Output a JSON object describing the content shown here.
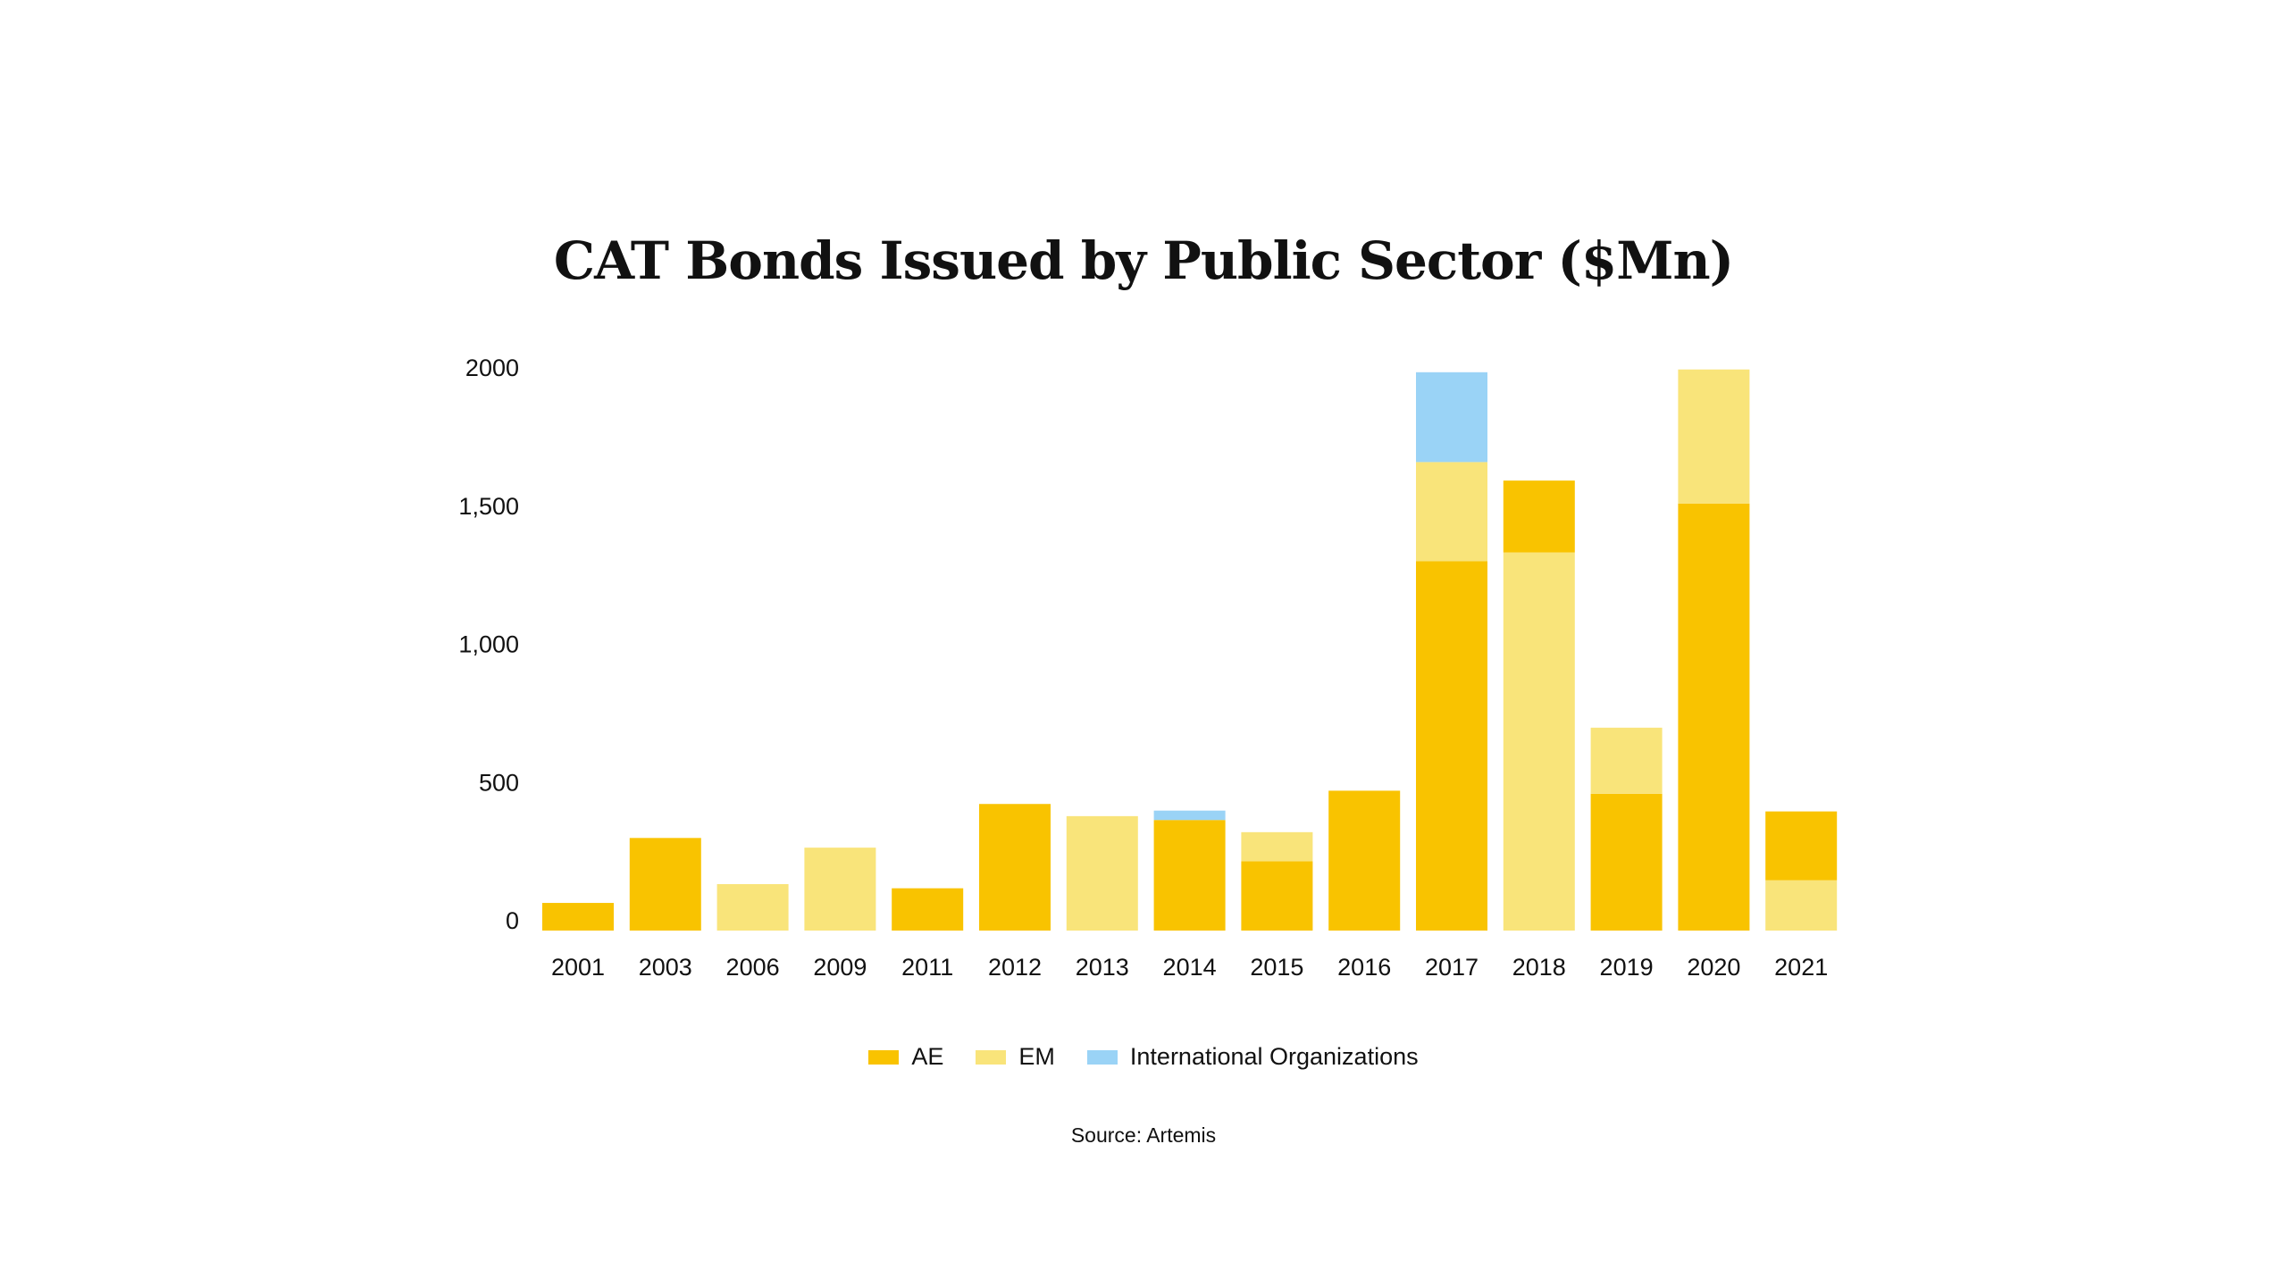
{
  "chart_data": {
    "type": "bar",
    "stacked": true,
    "title": "CAT Bonds Issued by Public Sector ($Mn)",
    "xlabel": "",
    "ylabel": "",
    "ylim": [
      0,
      2000
    ],
    "yticks": [
      "0",
      "500",
      "1,000",
      "1,500",
      "2000"
    ],
    "ytick_values": [
      0,
      500,
      1000,
      1500,
      2000
    ],
    "grid": false,
    "legend_position": "bottom",
    "categories": [
      "2001",
      "2003",
      "2006",
      "2009",
      "2011",
      "2012",
      "2013",
      "2014",
      "2015",
      "2016",
      "2017",
      "2018",
      "2019",
      "2020",
      "2021"
    ],
    "series": [
      {
        "name": "AE",
        "color": "#F9C300",
        "values": [
          100,
          335,
          0,
          0,
          153,
          458,
          0,
          400,
          251,
          506,
          1336,
          260,
          495,
          1545,
          249
        ]
      },
      {
        "name": "EM",
        "color": "#F9E47A",
        "values": [
          0,
          0,
          168,
          300,
          0,
          0,
          414,
          0,
          105,
          0,
          359,
          1368,
          239,
          485,
          182
        ]
      },
      {
        "name": "International Organizations",
        "color": "#9AD3F6",
        "values": [
          0,
          0,
          0,
          0,
          0,
          0,
          0,
          34,
          0,
          0,
          325,
          0,
          0,
          0,
          0
        ]
      }
    ],
    "stack_order": {
      "2018": [
        "EM",
        "AE"
      ],
      "2021": [
        "EM",
        "AE"
      ]
    },
    "source": "Source: Artemis"
  }
}
